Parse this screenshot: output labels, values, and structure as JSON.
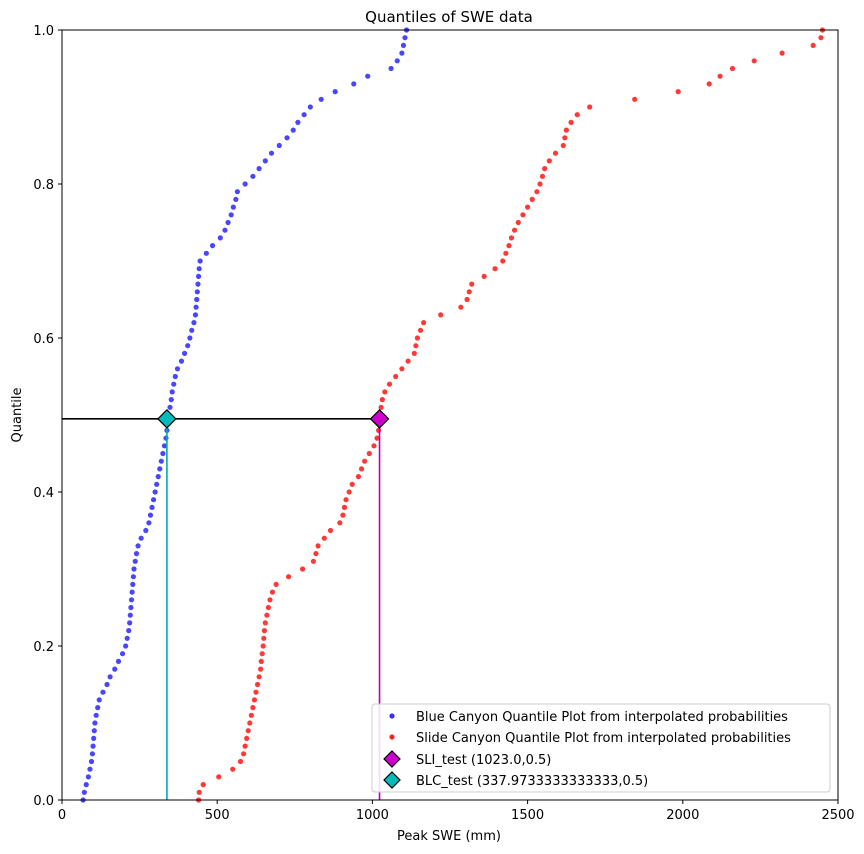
{
  "chart_data": {
    "type": "scatter",
    "title": "Quantiles of SWE data",
    "xlabel": "Peak SWE (mm)",
    "ylabel": "Quantile",
    "xlim": [
      0,
      2500
    ],
    "ylim": [
      0,
      1.0
    ],
    "x_ticks": [
      "0",
      "500",
      "1000",
      "1500",
      "2000",
      "2500"
    ],
    "y_ticks": [
      "0.0",
      "0.2",
      "0.4",
      "0.6",
      "0.8",
      "1.0"
    ],
    "grid": false,
    "legend_position": "lower-right",
    "series": [
      {
        "name": "Blue Canyon Quantile Plot from interpolated probabilities",
        "color": "#3333ff",
        "marker": "dot",
        "points": [
          [
            68,
            0.0
          ],
          [
            72,
            0.01
          ],
          [
            78,
            0.02
          ],
          [
            85,
            0.03
          ],
          [
            90,
            0.04
          ],
          [
            95,
            0.05
          ],
          [
            98,
            0.06
          ],
          [
            100,
            0.07
          ],
          [
            102,
            0.08
          ],
          [
            104,
            0.09
          ],
          [
            106,
            0.1
          ],
          [
            110,
            0.11
          ],
          [
            115,
            0.12
          ],
          [
            120,
            0.13
          ],
          [
            132,
            0.14
          ],
          [
            145,
            0.15
          ],
          [
            155,
            0.16
          ],
          [
            170,
            0.17
          ],
          [
            182,
            0.18
          ],
          [
            195,
            0.19
          ],
          [
            205,
            0.2
          ],
          [
            210,
            0.21
          ],
          [
            215,
            0.22
          ],
          [
            218,
            0.23
          ],
          [
            220,
            0.24
          ],
          [
            222,
            0.25
          ],
          [
            224,
            0.26
          ],
          [
            226,
            0.27
          ],
          [
            228,
            0.28
          ],
          [
            230,
            0.29
          ],
          [
            232,
            0.3
          ],
          [
            236,
            0.31
          ],
          [
            240,
            0.32
          ],
          [
            245,
            0.33
          ],
          [
            255,
            0.34
          ],
          [
            270,
            0.35
          ],
          [
            280,
            0.36
          ],
          [
            285,
            0.37
          ],
          [
            290,
            0.38
          ],
          [
            295,
            0.39
          ],
          [
            300,
            0.4
          ],
          [
            305,
            0.41
          ],
          [
            310,
            0.42
          ],
          [
            315,
            0.43
          ],
          [
            320,
            0.44
          ],
          [
            325,
            0.45
          ],
          [
            330,
            0.46
          ],
          [
            335,
            0.47
          ],
          [
            338,
            0.48
          ],
          [
            340,
            0.49
          ],
          [
            342,
            0.5
          ],
          [
            348,
            0.51
          ],
          [
            352,
            0.52
          ],
          [
            355,
            0.53
          ],
          [
            360,
            0.54
          ],
          [
            365,
            0.55
          ],
          [
            372,
            0.56
          ],
          [
            385,
            0.57
          ],
          [
            395,
            0.58
          ],
          [
            405,
            0.59
          ],
          [
            412,
            0.6
          ],
          [
            418,
            0.61
          ],
          [
            425,
            0.62
          ],
          [
            430,
            0.63
          ],
          [
            432,
            0.64
          ],
          [
            434,
            0.65
          ],
          [
            436,
            0.66
          ],
          [
            438,
            0.67
          ],
          [
            440,
            0.68
          ],
          [
            442,
            0.69
          ],
          [
            445,
            0.7
          ],
          [
            465,
            0.71
          ],
          [
            485,
            0.72
          ],
          [
            510,
            0.73
          ],
          [
            525,
            0.74
          ],
          [
            535,
            0.75
          ],
          [
            545,
            0.76
          ],
          [
            552,
            0.77
          ],
          [
            560,
            0.78
          ],
          [
            565,
            0.79
          ],
          [
            590,
            0.8
          ],
          [
            615,
            0.81
          ],
          [
            635,
            0.82
          ],
          [
            655,
            0.83
          ],
          [
            675,
            0.84
          ],
          [
            700,
            0.85
          ],
          [
            725,
            0.86
          ],
          [
            745,
            0.87
          ],
          [
            760,
            0.88
          ],
          [
            780,
            0.89
          ],
          [
            800,
            0.9
          ],
          [
            835,
            0.91
          ],
          [
            880,
            0.92
          ],
          [
            940,
            0.93
          ],
          [
            985,
            0.94
          ],
          [
            1060,
            0.95
          ],
          [
            1080,
            0.96
          ],
          [
            1095,
            0.97
          ],
          [
            1100,
            0.98
          ],
          [
            1105,
            0.99
          ],
          [
            1110,
            1.0
          ]
        ]
      },
      {
        "name": "Slide Canyon Quantile Plot from interpolated probabilities",
        "color": "#ff2222",
        "marker": "dot",
        "points": [
          [
            440,
            0.0
          ],
          [
            442,
            0.01
          ],
          [
            455,
            0.02
          ],
          [
            505,
            0.03
          ],
          [
            550,
            0.04
          ],
          [
            575,
            0.05
          ],
          [
            585,
            0.06
          ],
          [
            590,
            0.07
          ],
          [
            595,
            0.08
          ],
          [
            600,
            0.09
          ],
          [
            605,
            0.1
          ],
          [
            610,
            0.11
          ],
          [
            615,
            0.12
          ],
          [
            620,
            0.13
          ],
          [
            625,
            0.14
          ],
          [
            630,
            0.15
          ],
          [
            635,
            0.16
          ],
          [
            640,
            0.17
          ],
          [
            642,
            0.18
          ],
          [
            645,
            0.19
          ],
          [
            648,
            0.2
          ],
          [
            650,
            0.21
          ],
          [
            652,
            0.22
          ],
          [
            655,
            0.23
          ],
          [
            660,
            0.24
          ],
          [
            665,
            0.25
          ],
          [
            670,
            0.26
          ],
          [
            678,
            0.27
          ],
          [
            690,
            0.28
          ],
          [
            730,
            0.29
          ],
          [
            775,
            0.3
          ],
          [
            810,
            0.31
          ],
          [
            818,
            0.32
          ],
          [
            825,
            0.33
          ],
          [
            845,
            0.34
          ],
          [
            865,
            0.35
          ],
          [
            895,
            0.36
          ],
          [
            905,
            0.37
          ],
          [
            910,
            0.38
          ],
          [
            915,
            0.39
          ],
          [
            925,
            0.4
          ],
          [
            935,
            0.41
          ],
          [
            955,
            0.42
          ],
          [
            965,
            0.43
          ],
          [
            975,
            0.44
          ],
          [
            990,
            0.45
          ],
          [
            1005,
            0.46
          ],
          [
            1015,
            0.47
          ],
          [
            1020,
            0.48
          ],
          [
            1022,
            0.49
          ],
          [
            1023,
            0.5
          ],
          [
            1028,
            0.51
          ],
          [
            1032,
            0.52
          ],
          [
            1040,
            0.53
          ],
          [
            1055,
            0.54
          ],
          [
            1075,
            0.55
          ],
          [
            1095,
            0.56
          ],
          [
            1115,
            0.57
          ],
          [
            1135,
            0.58
          ],
          [
            1140,
            0.59
          ],
          [
            1145,
            0.6
          ],
          [
            1155,
            0.61
          ],
          [
            1165,
            0.62
          ],
          [
            1220,
            0.63
          ],
          [
            1285,
            0.64
          ],
          [
            1305,
            0.65
          ],
          [
            1312,
            0.66
          ],
          [
            1320,
            0.67
          ],
          [
            1360,
            0.68
          ],
          [
            1395,
            0.69
          ],
          [
            1420,
            0.7
          ],
          [
            1430,
            0.71
          ],
          [
            1440,
            0.72
          ],
          [
            1448,
            0.73
          ],
          [
            1458,
            0.74
          ],
          [
            1470,
            0.75
          ],
          [
            1485,
            0.76
          ],
          [
            1500,
            0.77
          ],
          [
            1515,
            0.78
          ],
          [
            1530,
            0.79
          ],
          [
            1540,
            0.8
          ],
          [
            1548,
            0.81
          ],
          [
            1555,
            0.82
          ],
          [
            1570,
            0.83
          ],
          [
            1590,
            0.84
          ],
          [
            1615,
            0.85
          ],
          [
            1620,
            0.86
          ],
          [
            1625,
            0.87
          ],
          [
            1640,
            0.88
          ],
          [
            1660,
            0.89
          ],
          [
            1700,
            0.9
          ],
          [
            1845,
            0.91
          ],
          [
            1985,
            0.92
          ],
          [
            2085,
            0.93
          ],
          [
            2120,
            0.94
          ],
          [
            2160,
            0.95
          ],
          [
            2230,
            0.96
          ],
          [
            2320,
            0.97
          ],
          [
            2420,
            0.98
          ],
          [
            2445,
            0.99
          ],
          [
            2450,
            1.0
          ]
        ]
      }
    ],
    "markers": [
      {
        "name": "SLI_test (1023.0,0.5)",
        "x": 1023.0,
        "y": 0.495,
        "color": "#cc00cc",
        "vline_color": "#bb00bb"
      },
      {
        "name": "BLC_test (337.9733333333333,0.5)",
        "x": 337.9733333333333,
        "y": 0.495,
        "color": "#00bbbb",
        "vline_color": "#00aaaa"
      }
    ],
    "hline": {
      "y": 0.495,
      "x_from": 0,
      "x_to": 1023.0,
      "color": "#000000"
    }
  }
}
